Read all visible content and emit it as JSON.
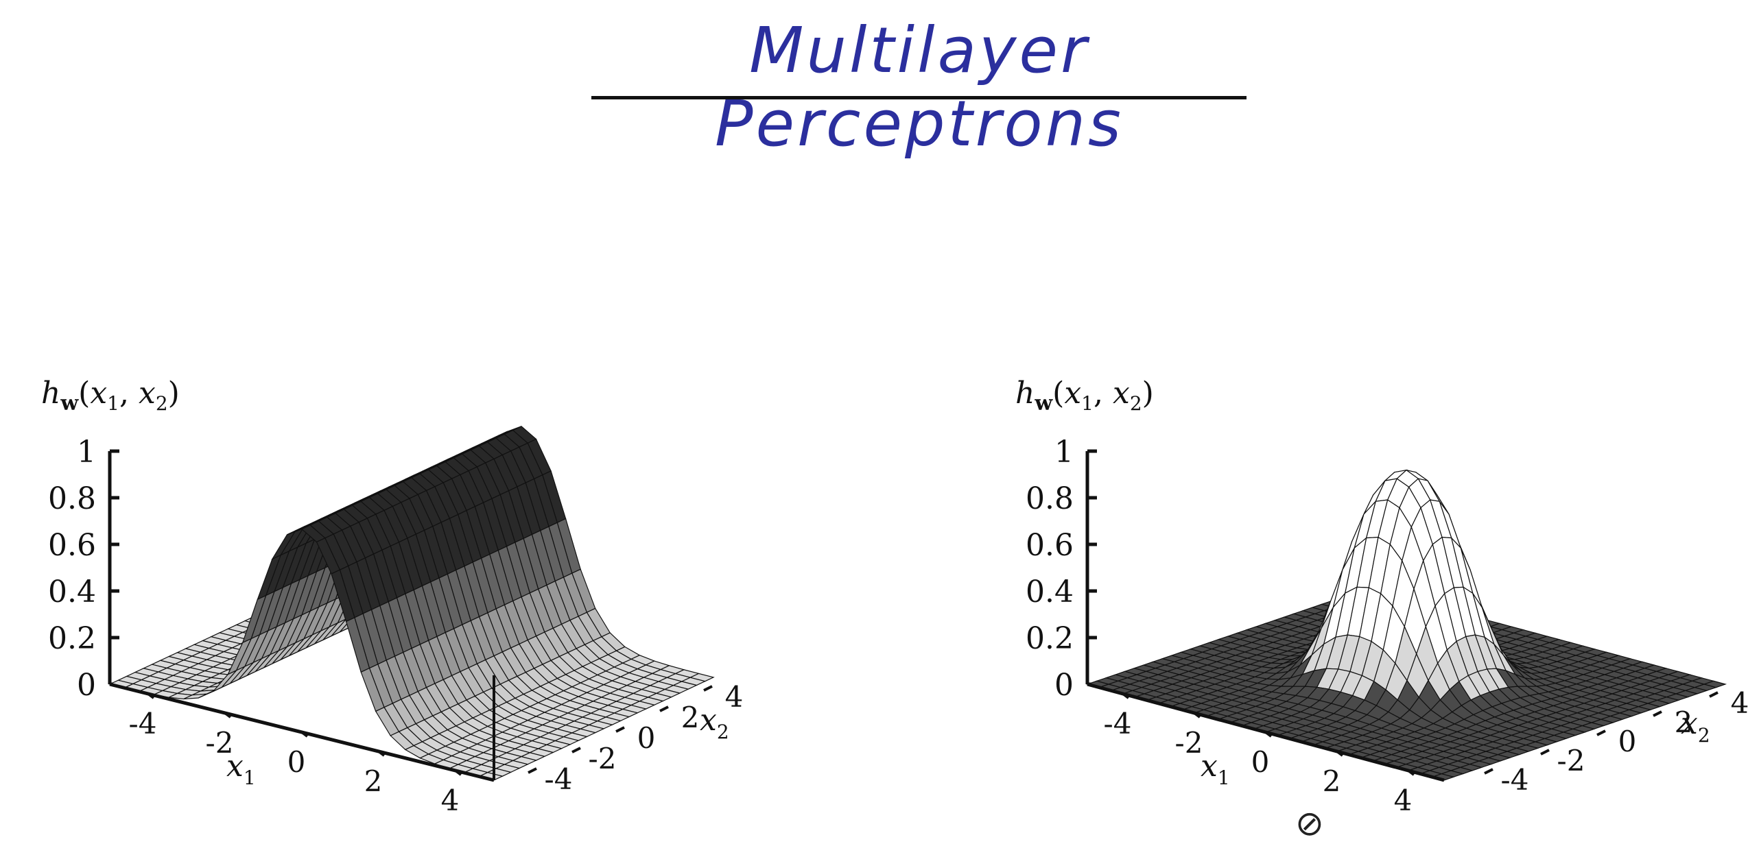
{
  "title": "Multilayer Perceptrons",
  "footer_symbol": "⊘",
  "chart_data": [
    {
      "type": "surface",
      "name": "ridge",
      "zlabel": "hw(x1, x2)",
      "zlabel_parts": {
        "h": "h",
        "w": "w",
        "open": "(",
        "x": "x",
        "s1": "1",
        "comma": ", ",
        "s2": "2",
        "close": ")"
      },
      "xlabel": "x1",
      "ylabel": "x2",
      "z_ticks": [
        "1",
        "0.8",
        "0.6",
        "0.4",
        "0.2",
        "0"
      ],
      "x_ticks": [
        "-4",
        "-2",
        "0",
        "2",
        "4"
      ],
      "y_ticks": [
        "-4",
        "-2",
        "0",
        "2",
        "4"
      ],
      "xlim": [
        -5,
        5
      ],
      "ylim": [
        -5,
        5
      ],
      "zlim": [
        0,
        1
      ],
      "function": "ridge: sigmoid(2*(x1+1)) * sigmoid(-2*(x1-1))",
      "grid_n": 26
    },
    {
      "type": "surface",
      "name": "bump",
      "zlabel": "hw(x1, x2)",
      "zlabel_parts": {
        "h": "h",
        "w": "w",
        "open": "(",
        "x": "x",
        "s1": "1",
        "comma": ", ",
        "s2": "2",
        "close": ")"
      },
      "xlabel": "x1",
      "ylabel": "x2",
      "z_ticks": [
        "1",
        "0.8",
        "0.6",
        "0.4",
        "0.2",
        "0"
      ],
      "x_ticks": [
        "-4",
        "-2",
        "0",
        "2",
        "4"
      ],
      "y_ticks": [
        "-4",
        "-2",
        "0",
        "2",
        "4"
      ],
      "xlim": [
        -5,
        5
      ],
      "ylim": [
        -5,
        5
      ],
      "zlim": [
        0,
        1
      ],
      "function": "bump: product of four sigmoids centered at origin",
      "grid_n": 30
    }
  ]
}
